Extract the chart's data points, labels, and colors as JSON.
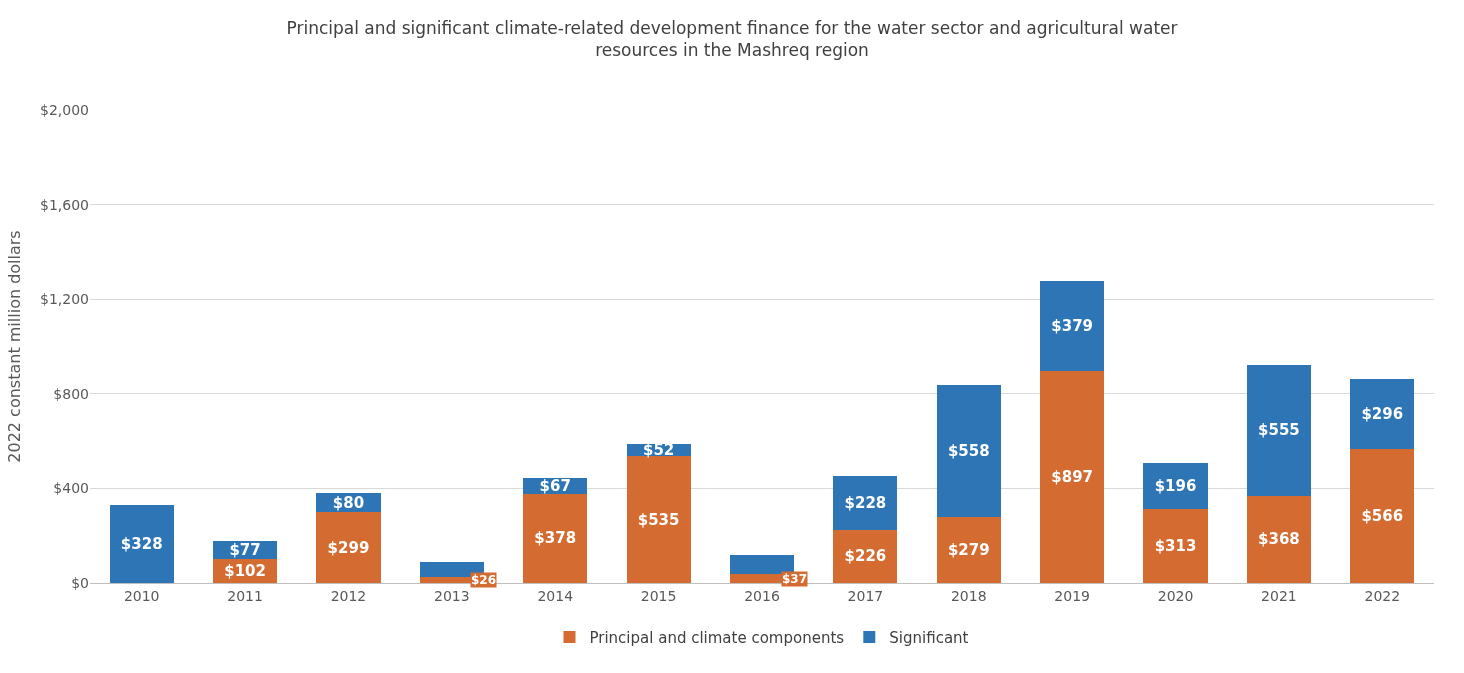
{
  "chart_data": {
    "type": "bar",
    "stacked": true,
    "title": "Principal and significant climate-related development finance for the water sector and agricultural water resources in the Mashreq region",
    "ylabel": "2022 constant million dollars",
    "categories": [
      "2010",
      "2011",
      "2012",
      "2013",
      "2014",
      "2015",
      "2016",
      "2017",
      "2018",
      "2019",
      "2020",
      "2021",
      "2022"
    ],
    "series": [
      {
        "name": "Principal and climate components",
        "color": "#d46b30",
        "values": [
          null,
          102,
          299,
          26,
          378,
          535,
          37,
          226,
          279,
          897,
          313,
          368,
          566
        ],
        "value_labels": [
          null,
          "$102",
          "$299",
          "$26",
          "$378",
          "$535",
          "$37",
          "$226",
          "$279",
          "$897",
          "$313",
          "$368",
          "$566"
        ]
      },
      {
        "name": "Significant",
        "color": "#2e75b6",
        "values": [
          328,
          77,
          80,
          61,
          67,
          52,
          80,
          228,
          558,
          379,
          196,
          555,
          296
        ],
        "value_labels": [
          "$328",
          "$77",
          "$80",
          null,
          "$67",
          "$52",
          null,
          "$228",
          "$558",
          "$379",
          "$196",
          "$555",
          "$296"
        ]
      }
    ],
    "ylim": [
      0,
      2000
    ],
    "yticks": [
      {
        "value": 0,
        "label": "$0"
      },
      {
        "value": 400,
        "label": "$400"
      },
      {
        "value": 800,
        "label": "$800"
      },
      {
        "value": 1200,
        "label": "$1,200"
      },
      {
        "value": 1600,
        "label": "$1,600"
      },
      {
        "value": 2000,
        "label": "$2,000"
      }
    ],
    "grid": "y",
    "legend": "bottom"
  }
}
